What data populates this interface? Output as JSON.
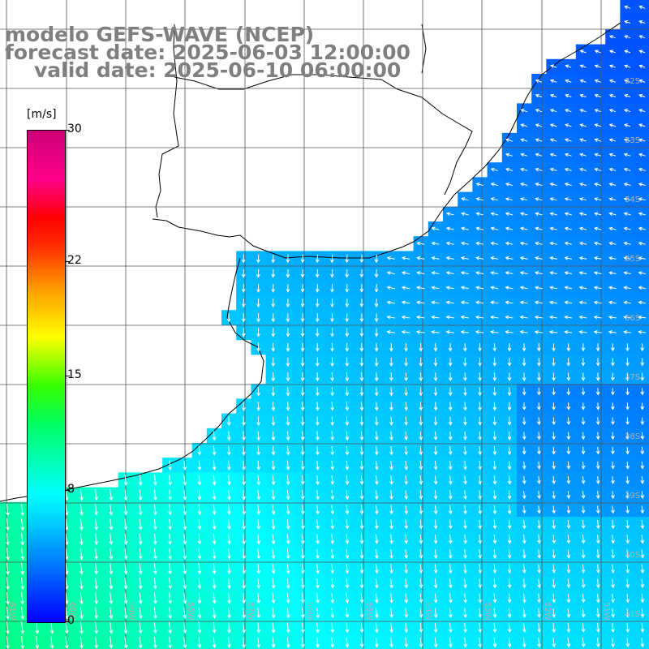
{
  "title": {
    "line1": "modelo GEFS-WAVE (NCEP)",
    "line2": "forecast date: 2025-06-03 12:00:00",
    "line3": "valid date: 2025-06-10 06:00:00"
  },
  "legend": {
    "unit": "[m/s]",
    "ticks": [
      "30",
      "22",
      "15",
      "8",
      "0"
    ],
    "tick_values": [
      30,
      22,
      15,
      8,
      0
    ],
    "min": 0,
    "max": 30
  },
  "axes": {
    "lat_labels": [
      "32S",
      "33S",
      "34S",
      "35S",
      "36S",
      "37S",
      "38S",
      "39S",
      "40S",
      "41S"
    ],
    "lon_labels": [
      "61W",
      "60W",
      "59W",
      "58W",
      "57W",
      "56W",
      "55W",
      "54W",
      "53W",
      "52W",
      "51W"
    ]
  },
  "field": {
    "variable": "wind speed and direction",
    "colormap": [
      "#0000ff",
      "#0066ff",
      "#00ccff",
      "#00ffff",
      "#00ff66",
      "#33ff00",
      "#ffff00",
      "#ff9900",
      "#ff0000",
      "#cc0077"
    ],
    "land_color": "#ffffff",
    "grid": true
  }
}
